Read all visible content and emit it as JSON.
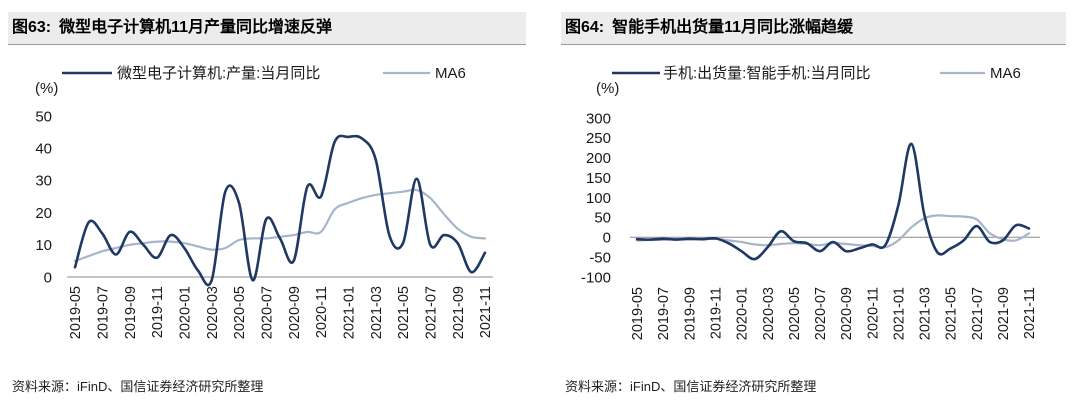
{
  "chart_data": [
    {
      "type": "line",
      "figure_label": "图63:",
      "title": "微型电子计算机11月产量同比增速反弹",
      "y_unit": "(%)",
      "x": [
        "2019-05",
        "2019-06",
        "2019-07",
        "2019-08",
        "2019-09",
        "2019-10",
        "2019-11",
        "2019-12",
        "2020-01",
        "2020-02",
        "2020-03",
        "2020-04",
        "2020-05",
        "2020-06",
        "2020-07",
        "2020-08",
        "2020-09",
        "2020-10",
        "2020-11",
        "2020-12",
        "2021-01",
        "2021-02",
        "2021-03",
        "2021-04",
        "2021-05",
        "2021-06",
        "2021-07",
        "2021-08",
        "2021-09",
        "2021-10",
        "2021-11"
      ],
      "y_ticks": [
        0,
        10,
        20,
        30,
        40,
        50
      ],
      "ylim": [
        0,
        50
      ],
      "grid": false,
      "legend_position": "top",
      "series": [
        {
          "name": "微型电子计算机:产量:当月同比",
          "color": "#1f3864",
          "values": [
            3,
            17,
            13.5,
            7,
            14,
            10,
            6,
            13,
            9,
            2,
            -1,
            26.5,
            23,
            -1,
            18,
            12,
            5,
            28,
            25,
            42,
            43.5,
            43,
            36.5,
            13,
            10.5,
            30.5,
            10,
            13,
            10.5,
            1.5,
            7.5
          ]
        },
        {
          "name": "MA6",
          "color": "#a6b5c9",
          "values": [
            5,
            6.5,
            8,
            9,
            10,
            10.5,
            11,
            11,
            10.5,
            9.5,
            8.5,
            9,
            11.5,
            12,
            12,
            12.5,
            13,
            14,
            14,
            21,
            23,
            24.5,
            25.5,
            26,
            26.5,
            27,
            24.5,
            19.5,
            15,
            12.5,
            12
          ]
        }
      ],
      "source": "资料来源：iFinD、国信证券经济研究所整理"
    },
    {
      "type": "line",
      "figure_label": "图64:",
      "title": "智能手机出货量11月同比涨幅趋缓",
      "y_unit": "(%)",
      "x": [
        "2019-05",
        "2019-06",
        "2019-07",
        "2019-08",
        "2019-09",
        "2019-10",
        "2019-11",
        "2019-12",
        "2020-01",
        "2020-02",
        "2020-03",
        "2020-04",
        "2020-05",
        "2020-06",
        "2020-07",
        "2020-08",
        "2020-09",
        "2020-10",
        "2020-11",
        "2020-12",
        "2021-01",
        "2021-02",
        "2021-03",
        "2021-04",
        "2021-05",
        "2021-06",
        "2021-07",
        "2021-08",
        "2021-09",
        "2021-10",
        "2021-11"
      ],
      "y_ticks": [
        -100,
        -50,
        0,
        50,
        100,
        150,
        200,
        250,
        300
      ],
      "ylim": [
        -100,
        300
      ],
      "grid": false,
      "legend_position": "top",
      "series": [
        {
          "name": "手机:出货量:智能手机:当月同比",
          "color": "#1f3864",
          "values": [
            -5,
            -6,
            -4,
            -6,
            -4,
            -5,
            -3,
            -15,
            -35,
            -55,
            -25,
            15,
            -10,
            -15,
            -35,
            -12,
            -35,
            -28,
            -18,
            -20,
            80,
            235,
            55,
            -38,
            -28,
            -8,
            28,
            -12,
            -8,
            30,
            22
          ]
        },
        {
          "name": "MA6",
          "color": "#a6b5c9",
          "values": [
            -8,
            -7,
            -6,
            -5,
            -5,
            -5,
            -4,
            -8,
            -12,
            -18,
            -20,
            -17,
            -15,
            -17,
            -20,
            -15,
            -17,
            -20,
            -22,
            -25,
            -8,
            25,
            48,
            55,
            53,
            52,
            45,
            10,
            -5,
            -8,
            10
          ]
        }
      ],
      "source": "资料来源：iFinD、国信证券经济研究所整理"
    }
  ]
}
